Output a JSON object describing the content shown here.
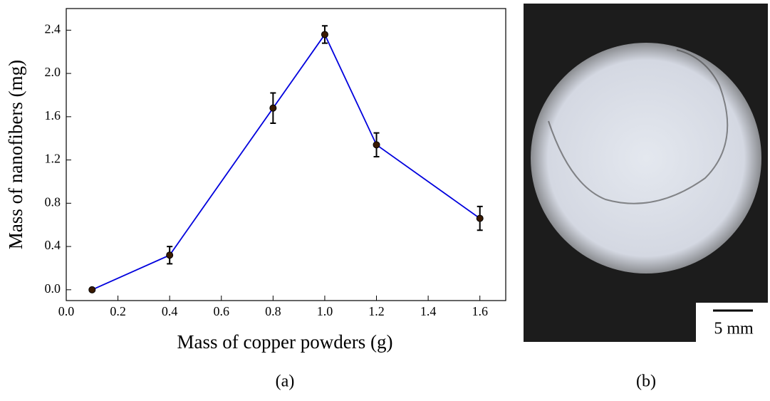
{
  "chart_data": {
    "type": "line",
    "x_label": "Mass of copper powders (g)",
    "y_label": "Mass of nanofibers (mg)",
    "caption": "(a)",
    "x": [
      0.1,
      0.4,
      0.8,
      1.0,
      1.2,
      1.6
    ],
    "series": [
      {
        "color": "#0000dd",
        "marker_color": "#3a1a00",
        "values": [
          0,
          0.32,
          1.68,
          2.36,
          1.34,
          0.66
        ],
        "errors": [
          0,
          0.08,
          0.14,
          0.08,
          0.11,
          0.11
        ]
      }
    ],
    "xlim": [
      0,
      1.7
    ],
    "ylim": [
      -0.1,
      2.6
    ],
    "xticks": [
      {
        "value": 0,
        "label": "0.0"
      },
      {
        "value": 0.2,
        "label": "0.2"
      },
      {
        "value": 0.4,
        "label": "0.4"
      },
      {
        "value": 0.6,
        "label": "0.6"
      },
      {
        "value": 0.8,
        "label": "0.8"
      },
      {
        "value": 1,
        "label": "1.0"
      },
      {
        "value": 1.2,
        "label": "1.2"
      },
      {
        "value": 1.4,
        "label": "1.4"
      },
      {
        "value": 1.6,
        "label": "1.6"
      }
    ],
    "yticks": [
      {
        "value": 0,
        "label": "0.0"
      },
      0.4,
      0.8,
      1.2,
      1.6,
      {
        "value": 2,
        "label": "2.0"
      },
      2.4
    ]
  },
  "photo": {
    "scale_label": "5 mm",
    "caption": "(b)"
  }
}
